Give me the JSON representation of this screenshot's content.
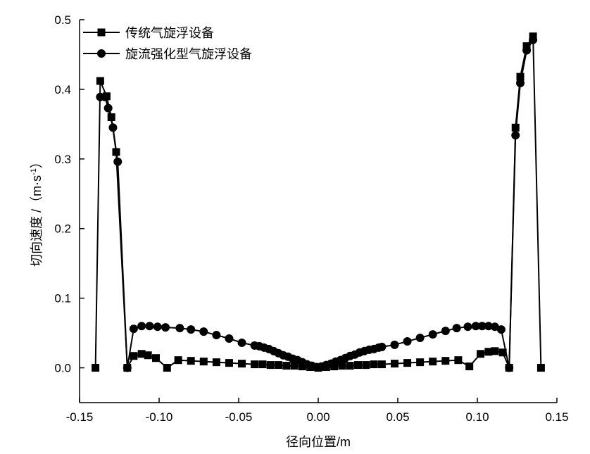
{
  "chart_data": {
    "type": "line",
    "xlabel": "径向位置/m",
    "ylabel_main": "切向速度 /（m·s",
    "ylabel_sup": "-1",
    "ylabel_close": "）",
    "xlim": [
      -0.15,
      0.15
    ],
    "ylim": [
      -0.05,
      0.5
    ],
    "xticks": [
      -0.15,
      -0.1,
      -0.05,
      0.0,
      0.05,
      0.1,
      0.15
    ],
    "xtick_labels": [
      "-0.15",
      "-0.10",
      "-0.05",
      "0.00",
      "0.05",
      "0.10",
      "0.15"
    ],
    "yticks": [
      0.0,
      0.1,
      0.2,
      0.3,
      0.4,
      0.5
    ],
    "ytick_labels": [
      "0.0",
      "0.1",
      "0.2",
      "0.3",
      "0.4",
      "0.5"
    ],
    "grid": false,
    "legend_position": "top-left",
    "series": [
      {
        "name": "传统气旋浮设备",
        "marker": "square",
        "color": "#000000",
        "points": [
          [
            -0.14,
            0.0
          ],
          [
            -0.137,
            0.412
          ],
          [
            -0.133,
            0.39
          ],
          [
            -0.13,
            0.36
          ],
          [
            -0.127,
            0.31
          ],
          [
            -0.12,
            0.0
          ],
          [
            -0.116,
            0.017
          ],
          [
            -0.111,
            0.02
          ],
          [
            -0.107,
            0.018
          ],
          [
            -0.102,
            0.014
          ],
          [
            -0.095,
            0.0
          ],
          [
            -0.088,
            0.011
          ],
          [
            -0.08,
            0.01
          ],
          [
            -0.072,
            0.009
          ],
          [
            -0.064,
            0.008
          ],
          [
            -0.056,
            0.007
          ],
          [
            -0.048,
            0.006
          ],
          [
            -0.04,
            0.005
          ],
          [
            -0.035,
            0.005
          ],
          [
            -0.03,
            0.004
          ],
          [
            -0.025,
            0.004
          ],
          [
            -0.02,
            0.003
          ],
          [
            -0.015,
            0.003
          ],
          [
            -0.01,
            0.002
          ],
          [
            -0.005,
            0.001
          ],
          [
            0.0,
            0.0
          ],
          [
            0.005,
            0.001
          ],
          [
            0.01,
            0.002
          ],
          [
            0.015,
            0.003
          ],
          [
            0.02,
            0.003
          ],
          [
            0.025,
            0.004
          ],
          [
            0.03,
            0.004
          ],
          [
            0.035,
            0.005
          ],
          [
            0.04,
            0.005
          ],
          [
            0.048,
            0.006
          ],
          [
            0.056,
            0.007
          ],
          [
            0.064,
            0.008
          ],
          [
            0.072,
            0.009
          ],
          [
            0.08,
            0.01
          ],
          [
            0.088,
            0.011
          ],
          [
            0.095,
            0.002
          ],
          [
            0.102,
            0.02
          ],
          [
            0.107,
            0.023
          ],
          [
            0.111,
            0.024
          ],
          [
            0.116,
            0.022
          ],
          [
            0.12,
            0.0
          ],
          [
            0.124,
            0.345
          ],
          [
            0.127,
            0.418
          ],
          [
            0.131,
            0.462
          ],
          [
            0.135,
            0.476
          ],
          [
            0.14,
            0.0
          ]
        ]
      },
      {
        "name": "旋流强化型气旋浮设备",
        "marker": "circle",
        "color": "#000000",
        "points": [
          [
            -0.137,
            0.389
          ],
          [
            -0.134,
            0.389
          ],
          [
            -0.132,
            0.373
          ],
          [
            -0.129,
            0.345
          ],
          [
            -0.126,
            0.296
          ],
          [
            -0.12,
            0.0
          ],
          [
            -0.116,
            0.056
          ],
          [
            -0.111,
            0.06
          ],
          [
            -0.106,
            0.06
          ],
          [
            -0.101,
            0.059
          ],
          [
            -0.096,
            0.058
          ],
          [
            -0.087,
            0.057
          ],
          [
            -0.08,
            0.055
          ],
          [
            -0.072,
            0.052
          ],
          [
            -0.064,
            0.047
          ],
          [
            -0.056,
            0.042
          ],
          [
            -0.048,
            0.036
          ],
          [
            -0.04,
            0.032
          ],
          [
            -0.037,
            0.031
          ],
          [
            -0.034,
            0.029
          ],
          [
            -0.031,
            0.027
          ],
          [
            -0.028,
            0.024
          ],
          [
            -0.025,
            0.021
          ],
          [
            -0.022,
            0.018
          ],
          [
            -0.019,
            0.016
          ],
          [
            -0.016,
            0.013
          ],
          [
            -0.013,
            0.011
          ],
          [
            -0.01,
            0.008
          ],
          [
            -0.007,
            0.005
          ],
          [
            -0.004,
            0.003
          ],
          [
            -0.001,
            0.001
          ],
          [
            0.002,
            0.002
          ],
          [
            0.005,
            0.004
          ],
          [
            0.008,
            0.006
          ],
          [
            0.011,
            0.009
          ],
          [
            0.014,
            0.011
          ],
          [
            0.017,
            0.014
          ],
          [
            0.02,
            0.017
          ],
          [
            0.023,
            0.019
          ],
          [
            0.026,
            0.022
          ],
          [
            0.029,
            0.024
          ],
          [
            0.032,
            0.026
          ],
          [
            0.035,
            0.027
          ],
          [
            0.038,
            0.029
          ],
          [
            0.04,
            0.03
          ],
          [
            0.048,
            0.033
          ],
          [
            0.056,
            0.038
          ],
          [
            0.064,
            0.043
          ],
          [
            0.072,
            0.048
          ],
          [
            0.08,
            0.053
          ],
          [
            0.087,
            0.057
          ],
          [
            0.094,
            0.059
          ],
          [
            0.099,
            0.06
          ],
          [
            0.103,
            0.06
          ],
          [
            0.107,
            0.06
          ],
          [
            0.111,
            0.059
          ],
          [
            0.115,
            0.055
          ],
          [
            0.12,
            0.0
          ],
          [
            0.124,
            0.334
          ],
          [
            0.127,
            0.409
          ],
          [
            0.131,
            0.456
          ],
          [
            0.135,
            0.471
          ]
        ]
      }
    ]
  }
}
